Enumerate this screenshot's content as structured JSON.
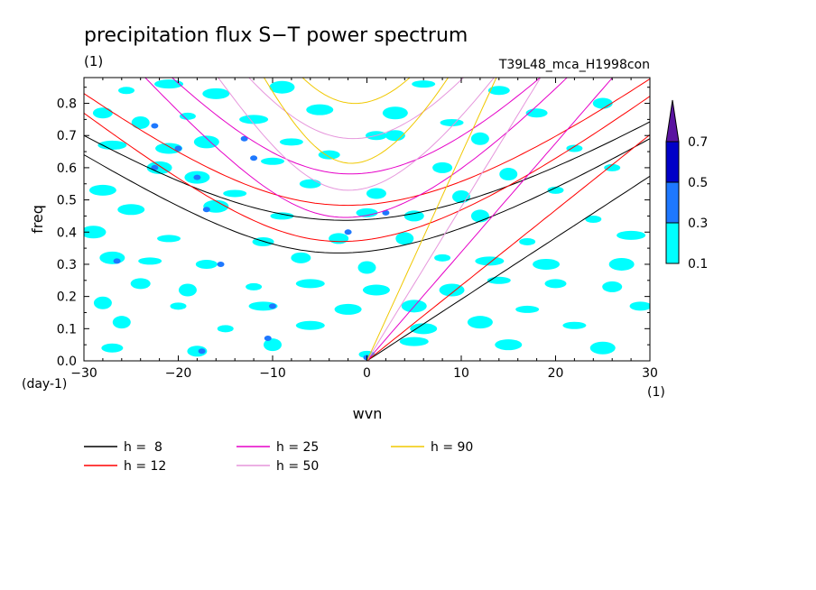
{
  "chart_data": {
    "type": "heatmap",
    "title": "precipitation flux S−T power spectrum",
    "units_left": "(1)",
    "experiment": "T39L48_mca_H1998con",
    "ylabel": "freq",
    "xlabel": "wvn",
    "y_units": "(day-1)",
    "x_units": "(1)",
    "xlim": [
      -30,
      30
    ],
    "ylim": [
      0,
      0.88
    ],
    "x_ticks": [
      {
        "value": -30,
        "label": "−30"
      },
      {
        "value": -20,
        "label": "−20"
      },
      {
        "value": -10,
        "label": "−10"
      },
      {
        "value": 0,
        "label": "0"
      },
      {
        "value": 10,
        "label": "10"
      },
      {
        "value": 20,
        "label": "20"
      },
      {
        "value": 30,
        "label": "30"
      }
    ],
    "y_ticks": [
      {
        "value": 0.0,
        "label": "0.0"
      },
      {
        "value": 0.1,
        "label": "0.1"
      },
      {
        "value": 0.2,
        "label": "0.2"
      },
      {
        "value": 0.3,
        "label": "0.3"
      },
      {
        "value": 0.4,
        "label": "0.4"
      },
      {
        "value": 0.5,
        "label": "0.5"
      },
      {
        "value": 0.6,
        "label": "0.6"
      },
      {
        "value": 0.7,
        "label": "0.7"
      },
      {
        "value": 0.8,
        "label": "0.8"
      }
    ],
    "color_scale": {
      "levels": [
        "0.1",
        "0.3",
        "0.5",
        "0.7"
      ],
      "colors": [
        "#00ffff",
        "#1e78ff",
        "#0000c8",
        "#5a14a0"
      ]
    },
    "patches": [
      {
        "x": -25.5,
        "y": 0.84,
        "level": 0
      },
      {
        "x": -21,
        "y": 0.86,
        "level": 0
      },
      {
        "x": -16,
        "y": 0.83,
        "level": 0
      },
      {
        "x": -9,
        "y": 0.85,
        "level": 0
      },
      {
        "x": 6,
        "y": 0.86,
        "level": 0
      },
      {
        "x": 14,
        "y": 0.84,
        "level": 0
      },
      {
        "x": -28,
        "y": 0.77,
        "level": 0
      },
      {
        "x": -24,
        "y": 0.74,
        "level": 0
      },
      {
        "x": -19,
        "y": 0.76,
        "level": 0
      },
      {
        "x": -12,
        "y": 0.75,
        "level": 0
      },
      {
        "x": -5,
        "y": 0.78,
        "level": 0
      },
      {
        "x": 3,
        "y": 0.77,
        "level": 0
      },
      {
        "x": 9,
        "y": 0.74,
        "level": 0
      },
      {
        "x": 18,
        "y": 0.77,
        "level": 0
      },
      {
        "x": 25,
        "y": 0.8,
        "level": 0
      },
      {
        "x": -22.5,
        "y": 0.73,
        "level": 1
      },
      {
        "x": -13,
        "y": 0.69,
        "level": 1
      },
      {
        "x": -27,
        "y": 0.67,
        "level": 0
      },
      {
        "x": -21,
        "y": 0.66,
        "level": 0
      },
      {
        "x": -17,
        "y": 0.68,
        "level": 0
      },
      {
        "x": -8,
        "y": 0.68,
        "level": 0
      },
      {
        "x": 1,
        "y": 0.7,
        "level": 0
      },
      {
        "x": 3,
        "y": 0.7,
        "level": 0
      },
      {
        "x": 12,
        "y": 0.69,
        "level": 0
      },
      {
        "x": 22,
        "y": 0.66,
        "level": 0
      },
      {
        "x": -20,
        "y": 0.66,
        "level": 1
      },
      {
        "x": -12,
        "y": 0.63,
        "level": 1
      },
      {
        "x": -22,
        "y": 0.6,
        "level": 0
      },
      {
        "x": -10,
        "y": 0.62,
        "level": 0
      },
      {
        "x": -4,
        "y": 0.64,
        "level": 0
      },
      {
        "x": 8,
        "y": 0.6,
        "level": 0
      },
      {
        "x": 15,
        "y": 0.58,
        "level": 0
      },
      {
        "x": 26,
        "y": 0.6,
        "level": 0
      },
      {
        "x": -22.5,
        "y": 0.6,
        "level": 1
      },
      {
        "x": -28,
        "y": 0.53,
        "level": 0
      },
      {
        "x": -18,
        "y": 0.57,
        "level": 0
      },
      {
        "x": -14,
        "y": 0.52,
        "level": 0
      },
      {
        "x": -6,
        "y": 0.55,
        "level": 0
      },
      {
        "x": 1,
        "y": 0.52,
        "level": 0
      },
      {
        "x": 10,
        "y": 0.51,
        "level": 0
      },
      {
        "x": 20,
        "y": 0.53,
        "level": 0
      },
      {
        "x": -18,
        "y": 0.57,
        "level": 1
      },
      {
        "x": -25,
        "y": 0.47,
        "level": 0
      },
      {
        "x": -16,
        "y": 0.48,
        "level": 0
      },
      {
        "x": -9,
        "y": 0.45,
        "level": 0
      },
      {
        "x": 0,
        "y": 0.46,
        "level": 0
      },
      {
        "x": 5,
        "y": 0.45,
        "level": 0
      },
      {
        "x": 12,
        "y": 0.45,
        "level": 0
      },
      {
        "x": 24,
        "y": 0.44,
        "level": 0
      },
      {
        "x": -17,
        "y": 0.47,
        "level": 1
      },
      {
        "x": 2,
        "y": 0.46,
        "level": 1
      },
      {
        "x": -29,
        "y": 0.4,
        "level": 0
      },
      {
        "x": -21,
        "y": 0.38,
        "level": 0
      },
      {
        "x": -11,
        "y": 0.37,
        "level": 0
      },
      {
        "x": -3,
        "y": 0.38,
        "level": 0
      },
      {
        "x": 4,
        "y": 0.38,
        "level": 0
      },
      {
        "x": 17,
        "y": 0.37,
        "level": 0
      },
      {
        "x": 28,
        "y": 0.39,
        "level": 0
      },
      {
        "x": -2,
        "y": 0.4,
        "level": 1
      },
      {
        "x": -27,
        "y": 0.32,
        "level": 0
      },
      {
        "x": -23,
        "y": 0.31,
        "level": 0
      },
      {
        "x": -17,
        "y": 0.3,
        "level": 0
      },
      {
        "x": -7,
        "y": 0.32,
        "level": 0
      },
      {
        "x": 0,
        "y": 0.29,
        "level": 0
      },
      {
        "x": 8,
        "y": 0.32,
        "level": 0
      },
      {
        "x": 13,
        "y": 0.31,
        "level": 0
      },
      {
        "x": 19,
        "y": 0.3,
        "level": 0
      },
      {
        "x": 27,
        "y": 0.3,
        "level": 0
      },
      {
        "x": -26.5,
        "y": 0.31,
        "level": 1
      },
      {
        "x": -15.5,
        "y": 0.3,
        "level": 1
      },
      {
        "x": -24,
        "y": 0.24,
        "level": 0
      },
      {
        "x": -19,
        "y": 0.22,
        "level": 0
      },
      {
        "x": -12,
        "y": 0.23,
        "level": 0
      },
      {
        "x": -6,
        "y": 0.24,
        "level": 0
      },
      {
        "x": 1,
        "y": 0.22,
        "level": 0
      },
      {
        "x": 9,
        "y": 0.22,
        "level": 0
      },
      {
        "x": 14,
        "y": 0.25,
        "level": 0
      },
      {
        "x": 20,
        "y": 0.24,
        "level": 0
      },
      {
        "x": 26,
        "y": 0.23,
        "level": 0
      },
      {
        "x": -28,
        "y": 0.18,
        "level": 0
      },
      {
        "x": -20,
        "y": 0.17,
        "level": 0
      },
      {
        "x": -11,
        "y": 0.17,
        "level": 0
      },
      {
        "x": -2,
        "y": 0.16,
        "level": 0
      },
      {
        "x": 5,
        "y": 0.17,
        "level": 0
      },
      {
        "x": 17,
        "y": 0.16,
        "level": 0
      },
      {
        "x": 29,
        "y": 0.17,
        "level": 0
      },
      {
        "x": -10,
        "y": 0.17,
        "level": 1
      },
      {
        "x": -26,
        "y": 0.12,
        "level": 0
      },
      {
        "x": -15,
        "y": 0.1,
        "level": 0
      },
      {
        "x": -6,
        "y": 0.11,
        "level": 0
      },
      {
        "x": 6,
        "y": 0.1,
        "level": 0
      },
      {
        "x": 12,
        "y": 0.12,
        "level": 0
      },
      {
        "x": 22,
        "y": 0.11,
        "level": 0
      },
      {
        "x": -27,
        "y": 0.04,
        "level": 0
      },
      {
        "x": -18,
        "y": 0.03,
        "level": 0
      },
      {
        "x": -10,
        "y": 0.05,
        "level": 0
      },
      {
        "x": 0,
        "y": 0.02,
        "level": 0
      },
      {
        "x": 5,
        "y": 0.06,
        "level": 0
      },
      {
        "x": 15,
        "y": 0.05,
        "level": 0
      },
      {
        "x": 25,
        "y": 0.04,
        "level": 0
      },
      {
        "x": -17.5,
        "y": 0.03,
        "level": 1
      },
      {
        "x": -10.5,
        "y": 0.07,
        "level": 1
      },
      {
        "x": 0,
        "y": 0.01,
        "level": 1
      }
    ],
    "series": [
      {
        "name": "h =  8",
        "h": 8,
        "color": "#000000"
      },
      {
        "name": "h = 12",
        "h": 12,
        "color": "#ff0000"
      },
      {
        "name": "h = 25",
        "h": 25,
        "color": "#e600c8"
      },
      {
        "name": "h = 50",
        "h": 50,
        "color": "#e696dc"
      },
      {
        "name": "h = 90",
        "h": 90,
        "color": "#f0c800"
      }
    ],
    "grid": false,
    "legend_position": "bottom"
  }
}
